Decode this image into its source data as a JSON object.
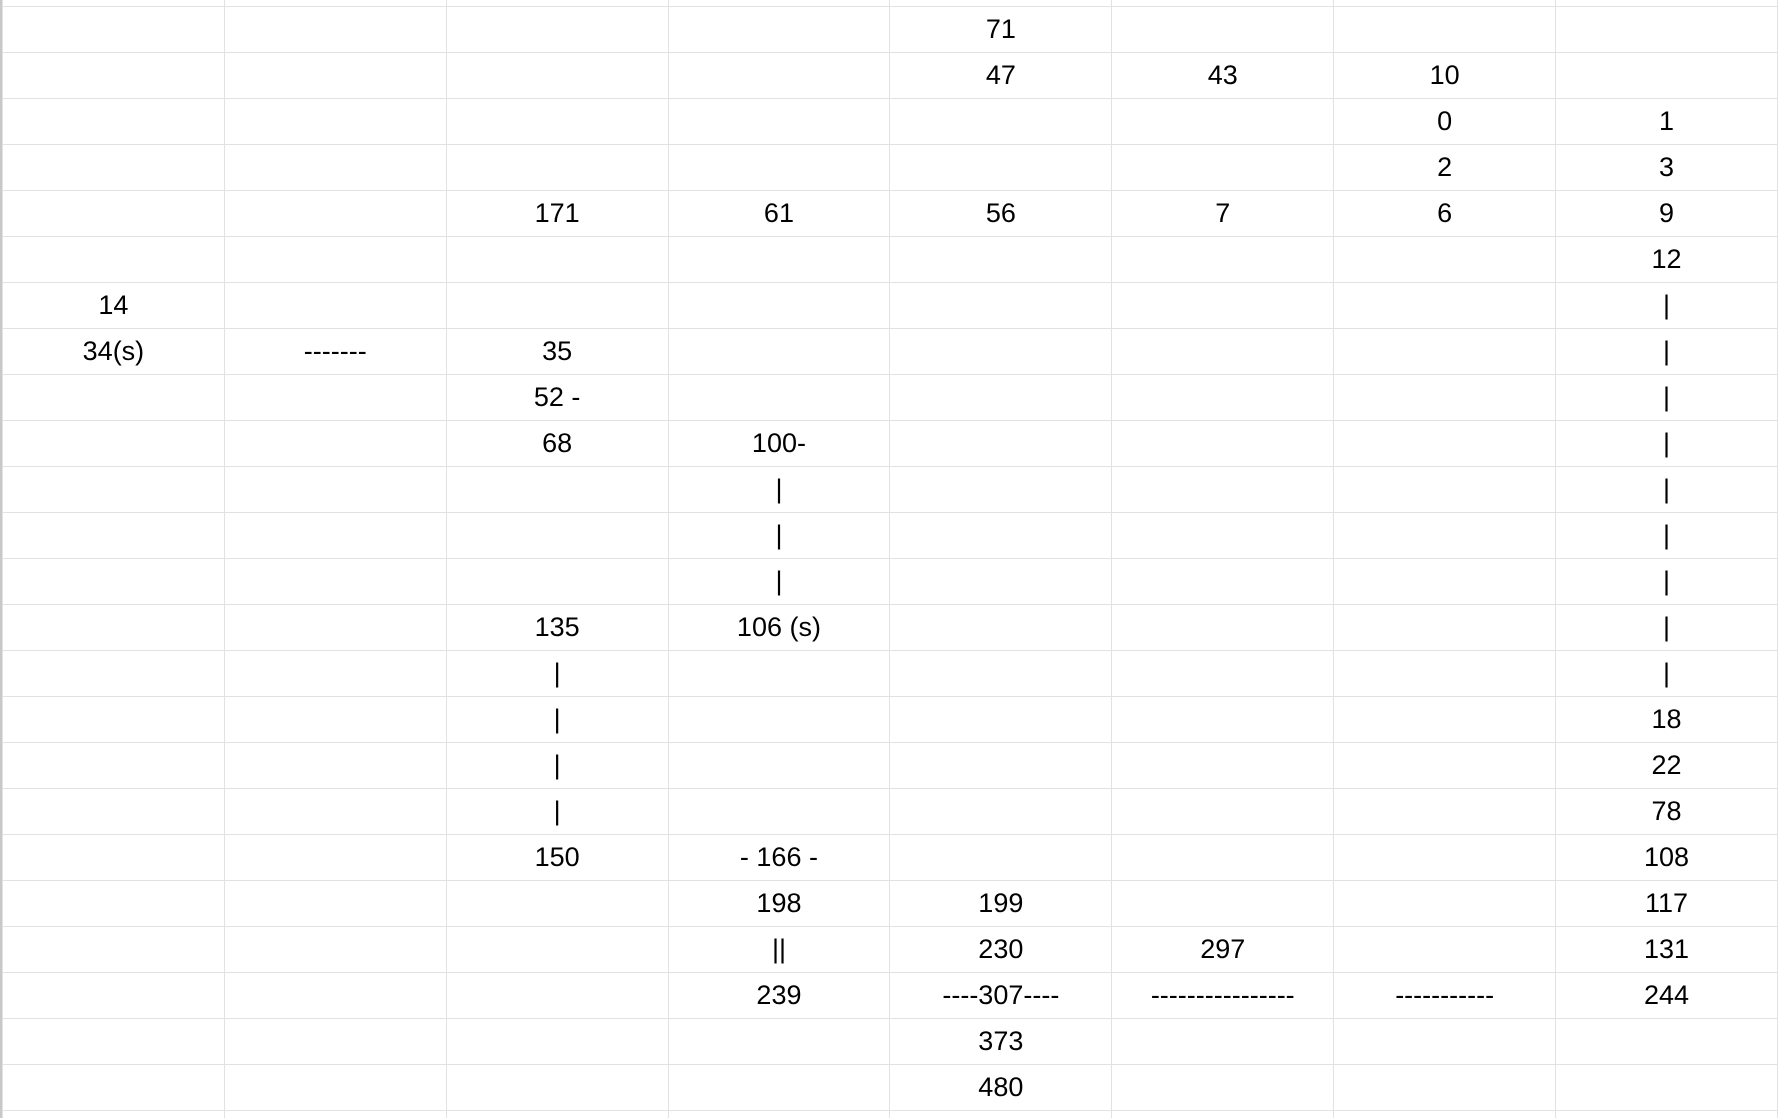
{
  "sheet": {
    "rows": [
      [
        "",
        "",
        "",
        "",
        "",
        "",
        "",
        ""
      ],
      [
        "",
        "",
        "",
        "",
        "71",
        "",
        "",
        ""
      ],
      [
        "",
        "",
        "",
        "",
        "47",
        "43",
        "10",
        ""
      ],
      [
        "",
        "",
        "",
        "",
        "",
        "",
        "0",
        "1"
      ],
      [
        "",
        "",
        "",
        "",
        "",
        "",
        "2",
        "3"
      ],
      [
        "",
        "",
        "171",
        "61",
        "56",
        "7",
        "6",
        "9"
      ],
      [
        "",
        "",
        "",
        "",
        "",
        "",
        "",
        "12"
      ],
      [
        "14",
        "",
        "",
        "",
        "",
        "",
        "",
        "|"
      ],
      [
        "34(s)",
        "-------",
        "35",
        "",
        "",
        "",
        "",
        "|"
      ],
      [
        "",
        "",
        "52 -",
        "",
        "",
        "",
        "",
        "|"
      ],
      [
        "",
        "",
        "68",
        "100-",
        "",
        "",
        "",
        "|"
      ],
      [
        "",
        "",
        "",
        "|",
        "",
        "",
        "",
        "|"
      ],
      [
        "",
        "",
        "",
        "|",
        "",
        "",
        "",
        "|"
      ],
      [
        "",
        "",
        "",
        "|",
        "",
        "",
        "",
        "|"
      ],
      [
        "",
        "",
        "135",
        "106 (s)",
        "",
        "",
        "",
        "|"
      ],
      [
        "",
        "",
        "|",
        "",
        "",
        "",
        "",
        "|"
      ],
      [
        "",
        "",
        "|",
        "",
        "",
        "",
        "",
        "18"
      ],
      [
        "",
        "",
        "|",
        "",
        "",
        "",
        "",
        "22"
      ],
      [
        "",
        "",
        "|",
        "",
        "",
        "",
        "",
        "78"
      ],
      [
        "",
        "",
        "150",
        "- 166 -",
        "",
        "",
        "",
        "108"
      ],
      [
        "",
        "",
        "",
        "198",
        "199",
        "",
        "",
        "117"
      ],
      [
        "",
        "",
        "",
        "||",
        "230",
        "297",
        "",
        "131"
      ],
      [
        "",
        "",
        "",
        "239",
        "----307----",
        "----------------",
        "-----------",
        "244"
      ],
      [
        "",
        "",
        "",
        "",
        "373",
        "",
        "",
        ""
      ],
      [
        "",
        "",
        "",
        "",
        "480",
        "",
        "",
        ""
      ],
      [
        "",
        "",
        "",
        "",
        "",
        "",
        "",
        ""
      ]
    ]
  }
}
